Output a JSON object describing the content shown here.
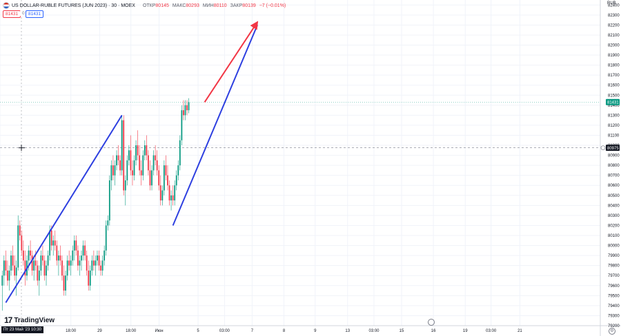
{
  "header": {
    "symbol": "US DOLLAR-RUBLE FUTURES (JUN 2023) · 30 · MOEX",
    "open_label": "ОТКР",
    "open_value": "80145",
    "high_label": "МАКС",
    "high_value": "80293",
    "low_label": "МИН",
    "low_value": "80110",
    "close_label": "ЗАКР",
    "close_value": "80139",
    "change": "−7 (−0.01%)"
  },
  "price_boxes": {
    "bid": "81431",
    "spread": "0",
    "ask": "81431"
  },
  "axis": {
    "unit": "RUB"
  },
  "branding": {
    "logo": "TradingView"
  },
  "chart_data": {
    "type": "candlestick",
    "title": "US DOLLAR-RUBLE FUTURES (JUN 2023) · 30 · MOEX",
    "ylim": [
      79200,
      82450
    ],
    "y_ticks": [
      79200,
      79300,
      79400,
      79500,
      79600,
      79700,
      79800,
      79900,
      80000,
      80100,
      80200,
      80300,
      80400,
      80500,
      80600,
      80700,
      80800,
      80900,
      81000,
      81100,
      81200,
      81300,
      81400,
      81500,
      81600,
      81700,
      81800,
      81900,
      82000,
      82100,
      82200,
      82300,
      82400
    ],
    "x_ticks": [
      {
        "label": "Пт 23 Май '23  10:30",
        "pos": 0.0,
        "highlight": true
      },
      {
        "label": "18:00",
        "pos": 0.118
      },
      {
        "label": "29",
        "pos": 0.166
      },
      {
        "label": "18:00",
        "pos": 0.218
      },
      {
        "label": "Июн",
        "pos": 0.265
      },
      {
        "label": "5",
        "pos": 0.33
      },
      {
        "label": "03:00",
        "pos": 0.374
      },
      {
        "label": "7",
        "pos": 0.42
      },
      {
        "label": "8",
        "pos": 0.473
      },
      {
        "label": "9",
        "pos": 0.525
      },
      {
        "label": "13",
        "pos": 0.579
      },
      {
        "label": "03:00",
        "pos": 0.623
      },
      {
        "label": "15",
        "pos": 0.669
      },
      {
        "label": "16",
        "pos": 0.722
      },
      {
        "label": "19",
        "pos": 0.775
      },
      {
        "label": "03:00",
        "pos": 0.818
      },
      {
        "label": "21",
        "pos": 0.866
      }
    ],
    "last_price": {
      "value": 81431,
      "color": "#089981"
    },
    "crosshair_price": {
      "value": 80975
    },
    "up_color": "#089981",
    "down_color": "#f23645",
    "ohlc": [
      [
        79600,
        79750,
        79350,
        79700
      ],
      [
        79700,
        79900,
        79600,
        79850
      ],
      [
        79850,
        79950,
        79700,
        79750
      ],
      [
        79750,
        79850,
        79600,
        79650
      ],
      [
        79650,
        79800,
        79550,
        79750
      ],
      [
        79750,
        79950,
        79700,
        79900
      ],
      [
        79900,
        80000,
        79750,
        79800
      ],
      [
        79800,
        79900,
        79650,
        79700
      ],
      [
        79700,
        79850,
        79500,
        79780
      ],
      [
        79780,
        80300,
        79750,
        80200
      ],
      [
        80200,
        80250,
        80050,
        80100
      ],
      [
        80100,
        80150,
        79900,
        79950
      ],
      [
        79950,
        80050,
        79800,
        79850
      ],
      [
        79850,
        79950,
        79600,
        79700
      ],
      [
        79700,
        79900,
        79650,
        79850
      ],
      [
        79850,
        80000,
        79750,
        79950
      ],
      [
        79950,
        80050,
        79850,
        79900
      ],
      [
        79900,
        79950,
        79700,
        79750
      ],
      [
        79750,
        79900,
        79650,
        79850
      ],
      [
        79850,
        79950,
        79750,
        79800
      ],
      [
        79800,
        79850,
        79600,
        79650
      ],
      [
        79650,
        79800,
        79500,
        79750
      ],
      [
        79750,
        79950,
        79700,
        79900
      ],
      [
        79900,
        80000,
        79800,
        79850
      ],
      [
        79850,
        79900,
        79650,
        79700
      ],
      [
        79700,
        79850,
        79600,
        79800
      ],
      [
        79800,
        79950,
        79750,
        79900
      ],
      [
        79900,
        80200,
        79850,
        80150
      ],
      [
        80150,
        80200,
        79950,
        80000
      ],
      [
        80000,
        80100,
        79900,
        80050
      ],
      [
        80050,
        80150,
        79950,
        80000
      ],
      [
        80000,
        80050,
        79800,
        79850
      ],
      [
        79850,
        79950,
        79700,
        79900
      ],
      [
        79900,
        80000,
        79800,
        79850
      ],
      [
        79850,
        79900,
        79650,
        79700
      ],
      [
        79700,
        79800,
        79500,
        79550
      ],
      [
        79550,
        79750,
        79500,
        79700
      ],
      [
        79700,
        79900,
        79650,
        79850
      ],
      [
        79850,
        79950,
        79750,
        79800
      ],
      [
        79800,
        79900,
        79700,
        79850
      ],
      [
        79850,
        80000,
        79800,
        79950
      ],
      [
        79950,
        80100,
        79850,
        80050
      ],
      [
        80050,
        80100,
        79900,
        79950
      ],
      [
        79950,
        80000,
        79750,
        79800
      ],
      [
        79800,
        79900,
        79700,
        79850
      ],
      [
        79850,
        79950,
        79750,
        79900
      ],
      [
        79900,
        80050,
        79850,
        80000
      ],
      [
        80000,
        80050,
        79850,
        79900
      ],
      [
        79900,
        79950,
        79700,
        79750
      ],
      [
        79750,
        79850,
        79550,
        79600
      ],
      [
        79600,
        79800,
        79550,
        79750
      ],
      [
        79750,
        79900,
        79700,
        79850
      ],
      [
        79850,
        79950,
        79750,
        79800
      ],
      [
        79800,
        79900,
        79700,
        79850
      ],
      [
        79850,
        79950,
        79800,
        79900
      ],
      [
        79900,
        79950,
        79750,
        79800
      ],
      [
        79800,
        79850,
        79700,
        79750
      ],
      [
        79750,
        79900,
        79700,
        79850
      ],
      [
        79850,
        80000,
        79800,
        79950
      ],
      [
        79950,
        80250,
        79900,
        80200
      ],
      [
        80200,
        80300,
        80150,
        80250
      ],
      [
        80250,
        80700,
        80200,
        80650
      ],
      [
        80650,
        80850,
        80550,
        80800
      ],
      [
        80800,
        80900,
        80650,
        80700
      ],
      [
        80700,
        80850,
        80600,
        80800
      ],
      [
        80800,
        80950,
        80750,
        80900
      ],
      [
        80900,
        81000,
        80800,
        80850
      ],
      [
        80850,
        80900,
        80700,
        80750
      ],
      [
        80750,
        81300,
        80700,
        81250
      ],
      [
        81250,
        81300,
        80500,
        80550
      ],
      [
        80550,
        80700,
        80400,
        80650
      ],
      [
        80650,
        80900,
        80600,
        80850
      ],
      [
        80850,
        81000,
        80800,
        80950
      ],
      [
        80950,
        81100,
        80700,
        80750
      ],
      [
        80750,
        80850,
        80600,
        80700
      ],
      [
        80700,
        80900,
        80650,
        80850
      ],
      [
        80850,
        81050,
        80800,
        81000
      ],
      [
        81000,
        81150,
        80850,
        80900
      ],
      [
        80900,
        81000,
        80700,
        80750
      ],
      [
        80750,
        80850,
        80600,
        80700
      ],
      [
        80700,
        80950,
        80650,
        80900
      ],
      [
        80900,
        81050,
        80850,
        81000
      ],
      [
        81000,
        81100,
        80850,
        80900
      ],
      [
        80900,
        80950,
        80700,
        80750
      ],
      [
        80750,
        80850,
        80550,
        80600
      ],
      [
        80600,
        80800,
        80550,
        80750
      ],
      [
        80750,
        80950,
        80700,
        80900
      ],
      [
        80900,
        81000,
        80800,
        80850
      ],
      [
        80850,
        80950,
        80700,
        80750
      ],
      [
        80750,
        80800,
        80550,
        80600
      ],
      [
        80600,
        80700,
        80400,
        80450
      ],
      [
        80450,
        80600,
        80400,
        80550
      ],
      [
        80550,
        80850,
        80500,
        80800
      ],
      [
        80800,
        80900,
        80650,
        80700
      ],
      [
        80700,
        80800,
        80550,
        80600
      ],
      [
        80600,
        80650,
        80400,
        80450
      ],
      [
        80450,
        80550,
        80350,
        80500
      ],
      [
        80500,
        80600,
        80400,
        80450
      ],
      [
        80450,
        80650,
        80400,
        80600
      ],
      [
        80600,
        80750,
        80550,
        80700
      ],
      [
        80700,
        80850,
        80650,
        80800
      ],
      [
        80800,
        81100,
        80750,
        81050
      ],
      [
        81050,
        81400,
        81000,
        81350
      ],
      [
        81350,
        81450,
        81250,
        81300
      ],
      [
        81300,
        81450,
        81250,
        81400
      ],
      [
        81400,
        81450,
        81300,
        81350
      ],
      [
        81350,
        81470,
        81320,
        81431
      ]
    ],
    "annotations": {
      "lines": [
        {
          "name": "trend-line-1",
          "color": "#2d3fe0",
          "from": {
            "bar": 2,
            "price": 79430
          },
          "to": {
            "bar": 68,
            "price": 81300
          }
        },
        {
          "name": "trend-line-2",
          "color": "#2d3fe0",
          "from": {
            "bar": 97,
            "price": 80200
          },
          "to": {
            "bar": 145,
            "price": 82200
          }
        },
        {
          "name": "target-arrow",
          "color": "#f23645",
          "arrow": true,
          "from": {
            "bar": 115,
            "price": 81430
          },
          "to": {
            "bar": 145,
            "price": 82230
          }
        }
      ]
    }
  }
}
